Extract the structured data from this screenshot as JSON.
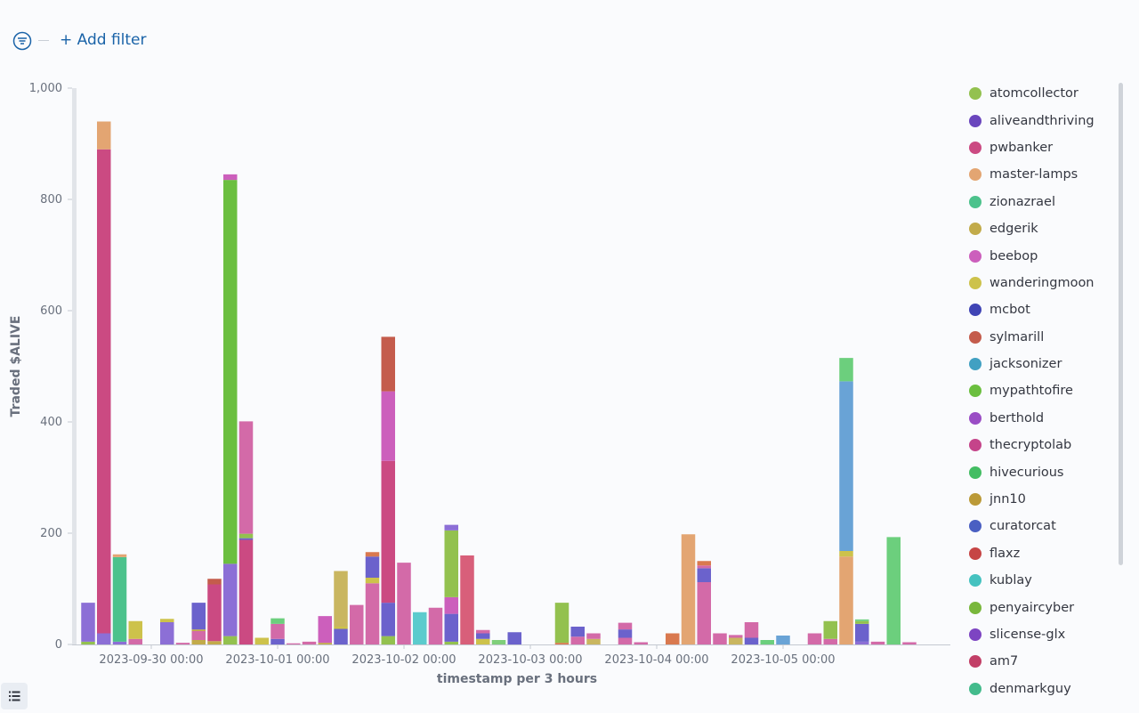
{
  "toolbar": {
    "filter_icon": "filter-icon",
    "add_filter_label": "+ Add filter"
  },
  "legend_toggle_icon": "list-icon",
  "chart_data": {
    "type": "bar",
    "stacked": true,
    "ylabel": "Traded $ALIVE",
    "xlabel": "timestamp per 3 hours",
    "ylim": [
      0,
      1000
    ],
    "yticks": [
      "0",
      "200",
      "400",
      "600",
      "800",
      "1,000"
    ],
    "x_ticks": [
      {
        "label": "2023-09-30 00:00",
        "x": "2023-09-30T00:00"
      },
      {
        "label": "2023-10-01 00:00",
        "x": "2023-10-01T00:00"
      },
      {
        "label": "2023-10-02 00:00",
        "x": "2023-10-02T00:00"
      },
      {
        "label": "2023-10-03 00:00",
        "x": "2023-10-03T00:00"
      },
      {
        "label": "2023-10-04 00:00",
        "x": "2023-10-04T00:00"
      },
      {
        "label": "2023-10-05 00:00",
        "x": "2023-10-05T00:00"
      }
    ],
    "legend_position": "right",
    "series": [
      {
        "name": "atomcollector",
        "color": "#93c14f"
      },
      {
        "name": "aliveandthriving",
        "color": "#6a46bd"
      },
      {
        "name": "pwbanker",
        "color": "#cb4a82"
      },
      {
        "name": "master-lamps",
        "color": "#e3a572"
      },
      {
        "name": "zionazrael",
        "color": "#4cc28c"
      },
      {
        "name": "edgerik",
        "color": "#c2ab4a"
      },
      {
        "name": "beebop",
        "color": "#cc5fbc"
      },
      {
        "name": "wanderingmoon",
        "color": "#cdc24b"
      },
      {
        "name": "mcbot",
        "color": "#3f44b5"
      },
      {
        "name": "sylmarill",
        "color": "#c45c4c"
      },
      {
        "name": "jacksonizer",
        "color": "#41a0c2"
      },
      {
        "name": "mypathtofire",
        "color": "#6bbf3f"
      },
      {
        "name": "berthold",
        "color": "#9a4dc5"
      },
      {
        "name": "thecryptolab",
        "color": "#c5448a"
      },
      {
        "name": "hivecurious",
        "color": "#43bd63"
      },
      {
        "name": "jnn10",
        "color": "#bb9a38"
      },
      {
        "name": "curatorcat",
        "color": "#4a5fc2"
      },
      {
        "name": "flaxz",
        "color": "#c64545"
      },
      {
        "name": "kublay",
        "color": "#45c2c0"
      },
      {
        "name": "penyaircyber",
        "color": "#79b73c"
      },
      {
        "name": "slicense-glx",
        "color": "#7d44c2"
      },
      {
        "name": "am7",
        "color": "#c23f67"
      },
      {
        "name": "denmarkguy",
        "color": "#43bb8c"
      }
    ],
    "extra_series_colors": {
      "c_lightpurple": "#8c6fd6",
      "c_bluepurple": "#6b62cc",
      "c_pink": "#d36aa8",
      "c_steelblue": "#69a3d6",
      "c_lightgreen": "#7fcf7a",
      "c_olive": "#c9b660",
      "c_rose": "#d85f7a",
      "c_teal": "#5ccbcd",
      "c_green": "#6ccf7d",
      "c_orange": "#d9794f"
    },
    "bars": [
      {
        "x": "2023-09-29T12:00",
        "segments": [
          [
            "atomcollector",
            5
          ],
          [
            "c_lightpurple",
            70
          ]
        ]
      },
      {
        "x": "2023-09-29T15:00",
        "segments": [
          [
            "c_lightpurple",
            20
          ],
          [
            "pwbanker",
            870
          ],
          [
            "master-lamps",
            50
          ]
        ]
      },
      {
        "x": "2023-09-29T18:00",
        "segments": [
          [
            "c_lightpurple",
            5
          ],
          [
            "zionazrael",
            152
          ],
          [
            "master-lamps",
            5
          ]
        ]
      },
      {
        "x": "2023-09-29T21:00",
        "segments": [
          [
            "c_pink",
            10
          ],
          [
            "wanderingmoon",
            32
          ]
        ]
      },
      {
        "x": "2023-09-30T03:00",
        "segments": [
          [
            "c_lightpurple",
            40
          ],
          [
            "wanderingmoon",
            6
          ]
        ]
      },
      {
        "x": "2023-09-30T06:00",
        "segments": [
          [
            "c_pink",
            3
          ]
        ]
      },
      {
        "x": "2023-09-30T09:00",
        "segments": [
          [
            "edgerik",
            8
          ],
          [
            "c_pink",
            16
          ],
          [
            "edgerik",
            3
          ],
          [
            "c_bluepurple",
            48
          ]
        ]
      },
      {
        "x": "2023-09-30T12:00",
        "segments": [
          [
            "edgerik",
            6
          ],
          [
            "pwbanker",
            102
          ],
          [
            "sylmarill",
            10
          ]
        ]
      },
      {
        "x": "2023-09-30T15:00",
        "segments": [
          [
            "atomcollector",
            15
          ],
          [
            "c_lightpurple",
            130
          ],
          [
            "mypathtofire",
            690
          ],
          [
            "beebop",
            10
          ]
        ]
      },
      {
        "x": "2023-09-30T18:00",
        "segments": [
          [
            "pwbanker",
            188
          ],
          [
            "c_bluepurple",
            3
          ],
          [
            "atomcollector",
            8
          ],
          [
            "c_pink",
            202
          ]
        ]
      },
      {
        "x": "2023-09-30T21:00",
        "segments": [
          [
            "wanderingmoon",
            12
          ]
        ]
      },
      {
        "x": "2023-10-01T00:00",
        "segments": [
          [
            "c_bluepurple",
            10
          ],
          [
            "c_pink",
            27
          ],
          [
            "c_green",
            10
          ]
        ]
      },
      {
        "x": "2023-10-01T03:00",
        "segments": [
          [
            "c_pink",
            2
          ]
        ]
      },
      {
        "x": "2023-10-01T06:00",
        "segments": [
          [
            "c_pink",
            5
          ]
        ]
      },
      {
        "x": "2023-10-01T09:00",
        "segments": [
          [
            "edgerik",
            3
          ],
          [
            "beebop",
            48
          ]
        ]
      },
      {
        "x": "2023-10-01T12:00",
        "segments": [
          [
            "c_bluepurple",
            28
          ],
          [
            "wanderingmoon",
            4
          ],
          [
            "c_olive",
            100
          ]
        ]
      },
      {
        "x": "2023-10-01T15:00",
        "segments": [
          [
            "c_pink",
            71
          ]
        ]
      },
      {
        "x": "2023-10-01T18:00",
        "segments": [
          [
            "c_pink",
            110
          ],
          [
            "wanderingmoon",
            10
          ],
          [
            "c_bluepurple",
            38
          ],
          [
            "c_orange",
            8
          ]
        ]
      },
      {
        "x": "2023-10-01T21:00",
        "segments": [
          [
            "atomcollector",
            15
          ],
          [
            "c_bluepurple",
            60
          ],
          [
            "pwbanker",
            255
          ],
          [
            "beebop",
            125
          ],
          [
            "sylmarill",
            98
          ]
        ]
      },
      {
        "x": "2023-10-02T00:00",
        "segments": [
          [
            "c_pink",
            147
          ]
        ]
      },
      {
        "x": "2023-10-02T03:00",
        "segments": [
          [
            "c_teal",
            58
          ]
        ]
      },
      {
        "x": "2023-10-02T06:00",
        "segments": [
          [
            "c_pink",
            66
          ]
        ]
      },
      {
        "x": "2023-10-02T09:00",
        "segments": [
          [
            "atomcollector",
            5
          ],
          [
            "c_bluepurple",
            50
          ],
          [
            "beebop",
            30
          ],
          [
            "atomcollector",
            120
          ],
          [
            "c_lightpurple",
            10
          ]
        ]
      },
      {
        "x": "2023-10-02T12:00",
        "segments": [
          [
            "c_rose",
            160
          ]
        ]
      },
      {
        "x": "2023-10-02T15:00",
        "segments": [
          [
            "wanderingmoon",
            10
          ],
          [
            "c_bluepurple",
            10
          ],
          [
            "c_pink",
            6
          ]
        ]
      },
      {
        "x": "2023-10-02T18:00",
        "segments": [
          [
            "c_lightgreen",
            8
          ]
        ]
      },
      {
        "x": "2023-10-02T21:00",
        "segments": [
          [
            "c_bluepurple",
            22
          ]
        ]
      },
      {
        "x": "2023-10-03T06:00",
        "segments": [
          [
            "c_orange",
            3
          ],
          [
            "atomcollector",
            72
          ]
        ]
      },
      {
        "x": "2023-10-03T09:00",
        "segments": [
          [
            "c_pink",
            14
          ],
          [
            "c_bluepurple",
            18
          ]
        ]
      },
      {
        "x": "2023-10-03T12:00",
        "segments": [
          [
            "c_olive",
            10
          ],
          [
            "c_pink",
            10
          ]
        ]
      },
      {
        "x": "2023-10-03T18:00",
        "segments": [
          [
            "c_pink",
            12
          ],
          [
            "c_bluepurple",
            15
          ],
          [
            "c_pink",
            12
          ]
        ]
      },
      {
        "x": "2023-10-03T21:00",
        "segments": [
          [
            "c_pink",
            4
          ]
        ]
      },
      {
        "x": "2023-10-04T03:00",
        "segments": [
          [
            "c_orange",
            20
          ]
        ]
      },
      {
        "x": "2023-10-04T06:00",
        "segments": [
          [
            "master-lamps",
            198
          ]
        ]
      },
      {
        "x": "2023-10-04T09:00",
        "segments": [
          [
            "c_pink",
            112
          ],
          [
            "c_bluepurple",
            25
          ],
          [
            "c_pink",
            5
          ],
          [
            "c_orange",
            8
          ]
        ]
      },
      {
        "x": "2023-10-04T12:00",
        "segments": [
          [
            "c_pink",
            20
          ]
        ]
      },
      {
        "x": "2023-10-04T15:00",
        "segments": [
          [
            "c_olive",
            12
          ],
          [
            "c_pink",
            5
          ]
        ]
      },
      {
        "x": "2023-10-04T18:00",
        "segments": [
          [
            "c_bluepurple",
            12
          ],
          [
            "c_pink",
            28
          ]
        ]
      },
      {
        "x": "2023-10-04T21:00",
        "segments": [
          [
            "c_green",
            8
          ]
        ]
      },
      {
        "x": "2023-10-05T00:00",
        "segments": [
          [
            "c_steelblue",
            16
          ]
        ]
      },
      {
        "x": "2023-10-05T06:00",
        "segments": [
          [
            "c_pink",
            20
          ]
        ]
      },
      {
        "x": "2023-10-05T09:00",
        "segments": [
          [
            "c_pink",
            10
          ],
          [
            "atomcollector",
            32
          ]
        ]
      },
      {
        "x": "2023-10-05T12:00",
        "segments": [
          [
            "master-lamps",
            158
          ],
          [
            "wanderingmoon",
            10
          ],
          [
            "c_steelblue",
            305
          ],
          [
            "c_green",
            42
          ]
        ]
      },
      {
        "x": "2023-10-05T15:00",
        "segments": [
          [
            "c_lightpurple",
            5
          ],
          [
            "c_bluepurple",
            32
          ],
          [
            "atomcollector",
            5
          ],
          [
            "c_green",
            3
          ]
        ]
      },
      {
        "x": "2023-10-05T18:00",
        "segments": [
          [
            "c_pink",
            5
          ]
        ]
      },
      {
        "x": "2023-10-05T21:00",
        "segments": [
          [
            "c_green",
            193
          ]
        ]
      },
      {
        "x": "2023-10-06T00:00",
        "segments": [
          [
            "c_pink",
            4
          ]
        ]
      }
    ]
  }
}
